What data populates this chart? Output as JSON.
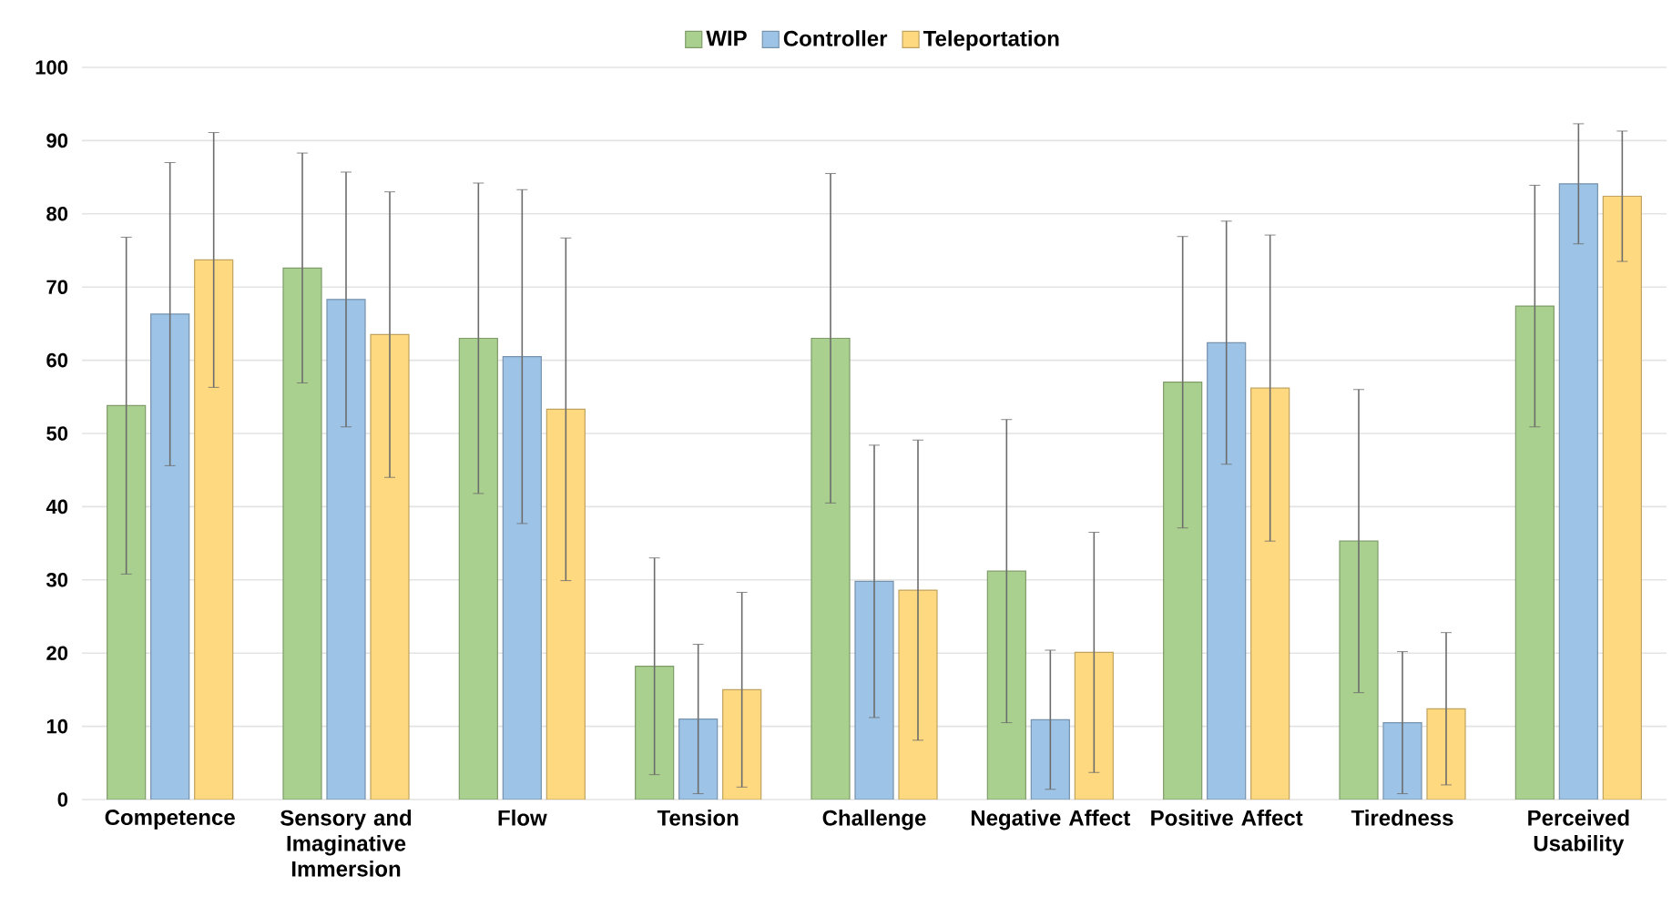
{
  "chart_data": {
    "type": "bar",
    "categories": [
      "Competence",
      "Sensory and Imaginative Immersion",
      "Flow",
      "Tension",
      "Challenge",
      "Negative Affect",
      "Positive Affect",
      "Tiredness",
      "Perceived Usability"
    ],
    "series": [
      {
        "name": "WIP",
        "color": "#a9d08e",
        "values": [
          53.8,
          72.6,
          63.0,
          18.2,
          63.0,
          31.2,
          57.0,
          35.3,
          67.4
        ],
        "errors": [
          23.0,
          15.7,
          21.2,
          14.8,
          22.5,
          20.7,
          19.9,
          20.7,
          16.5
        ]
      },
      {
        "name": "Controller",
        "color": "#9dc3e6",
        "values": [
          66.3,
          68.3,
          60.5,
          11.0,
          29.8,
          10.9,
          62.4,
          10.5,
          84.1
        ],
        "errors": [
          20.7,
          17.4,
          22.8,
          10.2,
          18.6,
          9.5,
          16.6,
          9.7,
          8.2
        ]
      },
      {
        "name": "Teleportation",
        "color": "#ffd97f",
        "values": [
          73.7,
          63.5,
          53.3,
          15.0,
          28.6,
          20.1,
          56.2,
          12.4,
          82.4
        ],
        "errors": [
          17.4,
          19.5,
          23.4,
          13.3,
          20.5,
          16.4,
          20.9,
          10.4,
          8.9
        ]
      }
    ],
    "ylim": [
      0,
      100
    ],
    "yticks": [
      0,
      10,
      20,
      30,
      40,
      50,
      60,
      70,
      80,
      90,
      100
    ],
    "grid": "y",
    "legend": "top"
  }
}
